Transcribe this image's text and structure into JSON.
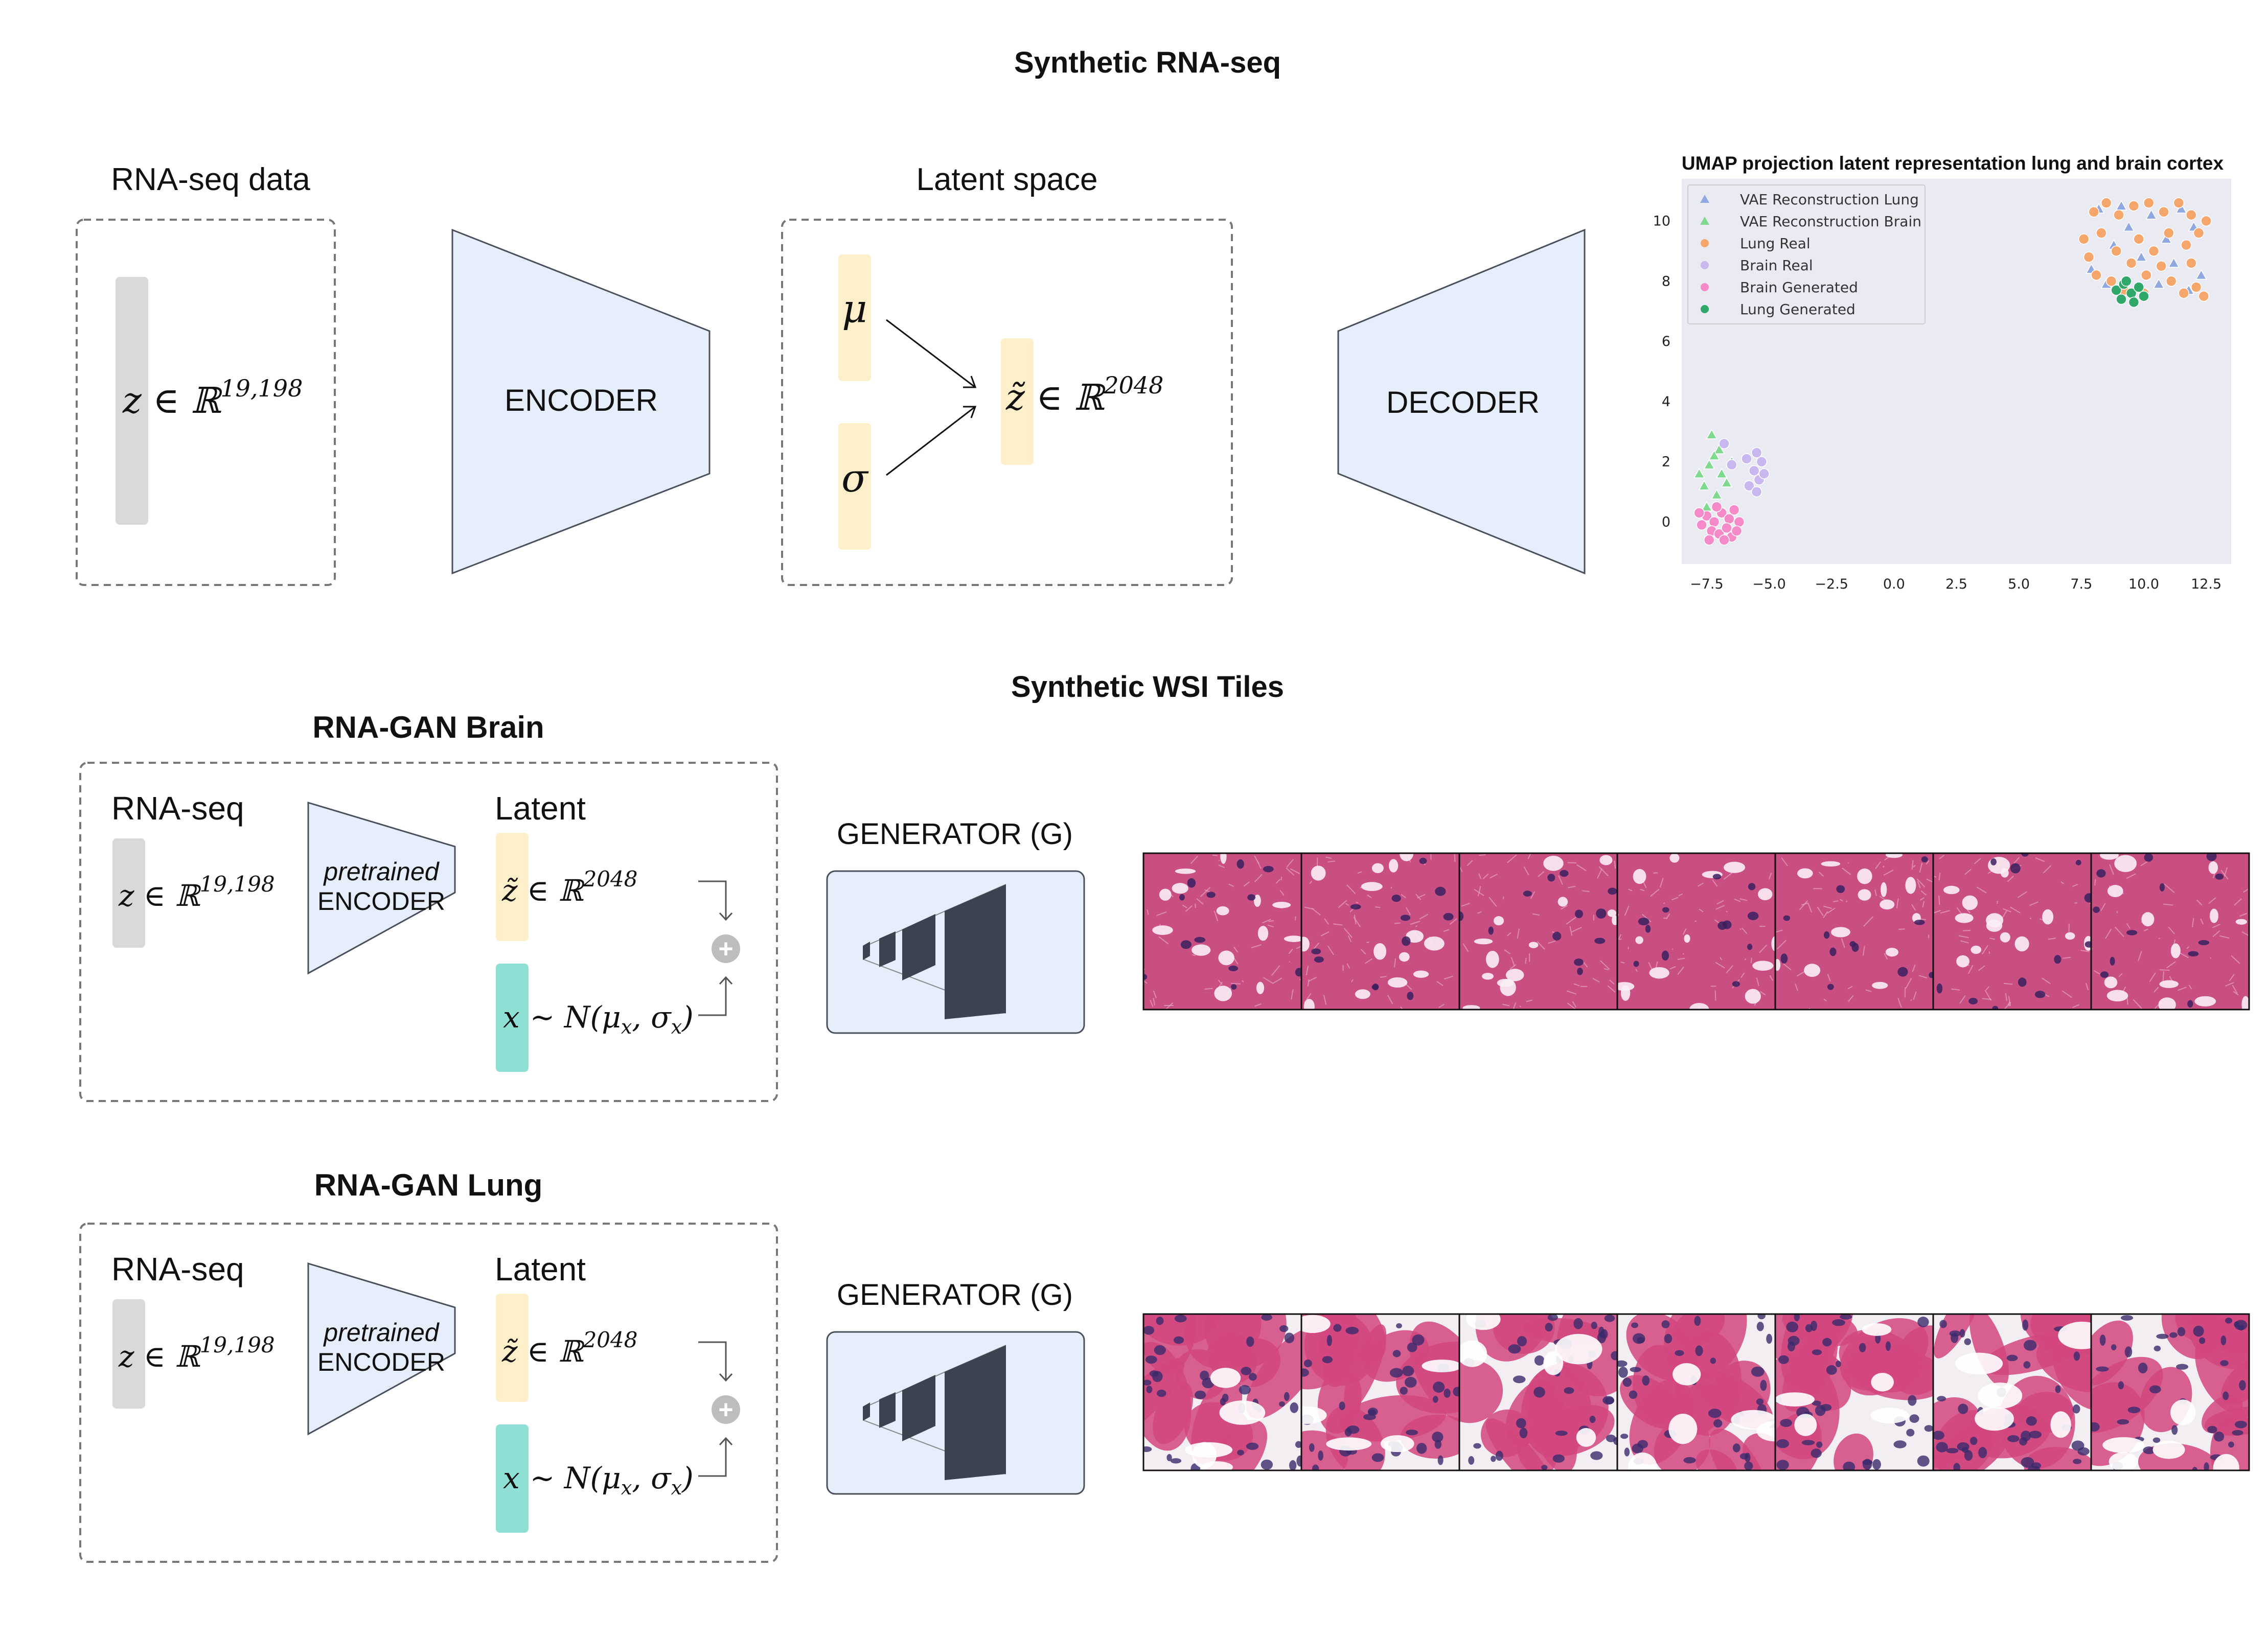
{
  "titles": {
    "synthetic_rnaseq": "Synthetic RNA-seq",
    "synthetic_wsi": "Synthetic WSI Tiles",
    "gan_brain": "RNA-GAN Brain",
    "gan_lung": "RNA-GAN Lung"
  },
  "vae": {
    "rnaseq_label": "RNA-seq data",
    "z_math": "z ∈ ℝ",
    "z_dim": "19,198",
    "encoder": "ENCODER",
    "latent_label": "Latent space",
    "mu": "μ",
    "sigma": "σ",
    "zt_math": "z̃ ∈ ℝ",
    "zt_dim": "2048",
    "decoder": "DECODER"
  },
  "gan": {
    "rnaseq": "RNA-seq",
    "z_math": "z ∈ ℝ",
    "z_dim": "19,198",
    "enc_line1": "pretrained",
    "enc_line2": "ENCODER",
    "latent": "Latent",
    "zt_math": "z̃ ∈ ℝ",
    "zt_dim": "2048",
    "x_math": "x",
    "x_dist": "~ N(μ",
    "x_sub": "x",
    "x_mid": ", σ",
    "x_end": ")",
    "plus": "+",
    "generator": "GENERATOR (G)"
  },
  "colors": {
    "lung_real": "#f5a66b",
    "brain_real": "#c9b8f0",
    "vae_lung": "#8fa8e0",
    "vae_brain": "#7fd98e",
    "brain_gen": "#f58ac8",
    "lung_gen": "#2fa86a",
    "brain_tissue": "#c94f83",
    "lung_tissue": "#d2477f"
  },
  "chart_data": {
    "type": "scatter",
    "title": "UMAP projection latent representation lung and brain cortex",
    "xlabel": "",
    "ylabel": "",
    "xlim": [
      -8.5,
      13.5
    ],
    "ylim": [
      -1.4,
      11.4
    ],
    "xticks": [
      "−7.5",
      "−5.0",
      "−2.5",
      "0.0",
      "2.5",
      "5.0",
      "7.5",
      "10.0",
      "12.5"
    ],
    "xtick_values": [
      -7.5,
      -5.0,
      -2.5,
      0.0,
      2.5,
      5.0,
      7.5,
      10.0,
      12.5
    ],
    "yticks": [
      "0",
      "2",
      "4",
      "6",
      "8",
      "10"
    ],
    "ytick_values": [
      0,
      2,
      4,
      6,
      8,
      10
    ],
    "legend_position": "top-left",
    "grid": false,
    "series": [
      {
        "name": "VAE Reconstruction Lung",
        "marker": "triangle",
        "color": "#8fa8e0",
        "points": [
          [
            8.2,
            10.4
          ],
          [
            9.1,
            10.5
          ],
          [
            10.3,
            10.2
          ],
          [
            11.5,
            10.4
          ],
          [
            12.0,
            9.8
          ],
          [
            8.8,
            9.2
          ],
          [
            9.9,
            8.8
          ],
          [
            11.2,
            8.6
          ],
          [
            7.9,
            8.4
          ],
          [
            10.6,
            7.9
          ],
          [
            11.8,
            7.7
          ],
          [
            9.4,
            9.8
          ],
          [
            12.3,
            8.2
          ],
          [
            8.5,
            7.9
          ],
          [
            10.9,
            9.4
          ]
        ]
      },
      {
        "name": "VAE Reconstruction Brain",
        "marker": "triangle",
        "color": "#7fd98e",
        "points": [
          [
            -7.3,
            2.9
          ],
          [
            -7.0,
            2.4
          ],
          [
            -7.4,
            1.9
          ],
          [
            -6.9,
            1.6
          ],
          [
            -7.6,
            1.2
          ],
          [
            -7.1,
            0.9
          ],
          [
            -6.7,
            1.3
          ],
          [
            -7.2,
            2.2
          ],
          [
            -7.5,
            0.5
          ],
          [
            -6.8,
            0.3
          ],
          [
            -6.5,
            2.0
          ],
          [
            -7.8,
            1.6
          ]
        ]
      },
      {
        "name": "Lung Real",
        "marker": "circle",
        "color": "#f5a66b",
        "points": [
          [
            8.0,
            10.3
          ],
          [
            8.5,
            10.6
          ],
          [
            9.0,
            10.2
          ],
          [
            9.6,
            10.5
          ],
          [
            10.2,
            10.6
          ],
          [
            10.8,
            10.3
          ],
          [
            11.4,
            10.6
          ],
          [
            11.9,
            10.2
          ],
          [
            12.2,
            9.6
          ],
          [
            11.7,
            9.2
          ],
          [
            8.3,
            9.6
          ],
          [
            8.9,
            9.0
          ],
          [
            9.5,
            8.6
          ],
          [
            7.8,
            8.8
          ],
          [
            8.1,
            8.2
          ],
          [
            8.7,
            8.0
          ],
          [
            10.1,
            8.2
          ],
          [
            10.7,
            8.5
          ],
          [
            11.1,
            8.0
          ],
          [
            11.6,
            7.6
          ],
          [
            12.1,
            7.8
          ],
          [
            12.4,
            7.5
          ],
          [
            10.4,
            9.0
          ],
          [
            9.8,
            9.4
          ],
          [
            11.0,
            9.6
          ],
          [
            12.5,
            10.0
          ],
          [
            7.6,
            9.4
          ],
          [
            9.2,
            7.7
          ],
          [
            10.0,
            7.6
          ],
          [
            11.9,
            8.6
          ]
        ]
      },
      {
        "name": "Brain Real",
        "marker": "circle",
        "color": "#c9b8f0",
        "points": [
          [
            -5.5,
            2.3
          ],
          [
            -5.3,
            2.0
          ],
          [
            -5.6,
            1.7
          ],
          [
            -5.4,
            1.4
          ],
          [
            -5.8,
            1.2
          ],
          [
            -5.2,
            1.6
          ],
          [
            -6.8,
            2.6
          ],
          [
            -6.5,
            1.9
          ],
          [
            -5.9,
            2.1
          ],
          [
            -5.5,
            1.0
          ]
        ]
      },
      {
        "name": "Brain Generated",
        "marker": "circle",
        "color": "#f58ac8",
        "points": [
          [
            -7.5,
            0.2
          ],
          [
            -7.2,
            0.0
          ],
          [
            -6.9,
            0.3
          ],
          [
            -6.6,
            0.1
          ],
          [
            -7.3,
            -0.3
          ],
          [
            -7.0,
            -0.4
          ],
          [
            -6.7,
            -0.2
          ],
          [
            -6.4,
            0.4
          ],
          [
            -7.7,
            -0.1
          ],
          [
            -6.2,
            0.0
          ],
          [
            -6.5,
            -0.5
          ],
          [
            -7.1,
            0.5
          ],
          [
            -6.8,
            -0.6
          ],
          [
            -7.4,
            -0.6
          ],
          [
            -6.3,
            -0.3
          ],
          [
            -7.8,
            0.3
          ]
        ]
      },
      {
        "name": "Lung Generated",
        "marker": "circle",
        "color": "#2fa86a",
        "points": [
          [
            8.9,
            7.7
          ],
          [
            9.2,
            7.9
          ],
          [
            9.5,
            7.6
          ],
          [
            9.8,
            7.8
          ],
          [
            9.1,
            7.4
          ],
          [
            9.6,
            7.3
          ],
          [
            10.0,
            7.5
          ],
          [
            9.3,
            8.0
          ]
        ]
      }
    ]
  }
}
